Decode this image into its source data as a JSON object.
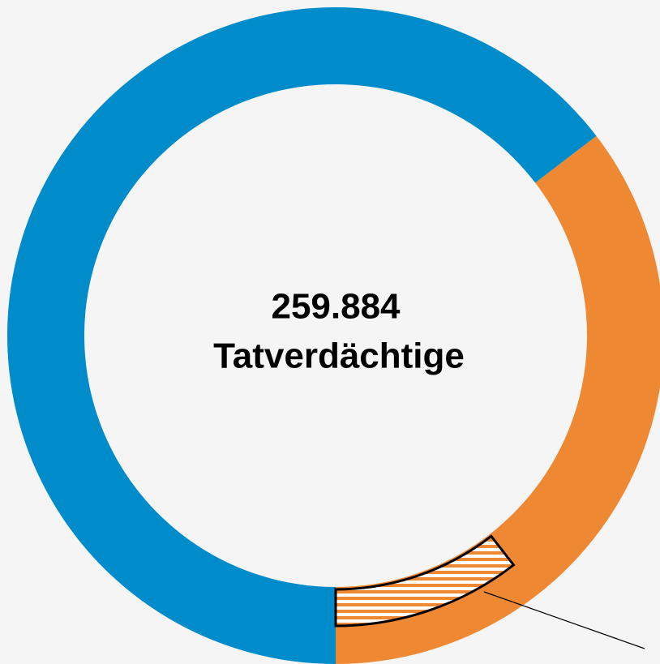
{
  "chart_data": {
    "type": "donut",
    "center_text": [
      "259.884",
      "Tatverdächtige"
    ],
    "values": [
      64.6,
      35.4
    ],
    "colors": [
      "#008bca",
      "#ee8833"
    ],
    "highlight": {
      "segment": 1,
      "value": 10.5
    }
  }
}
